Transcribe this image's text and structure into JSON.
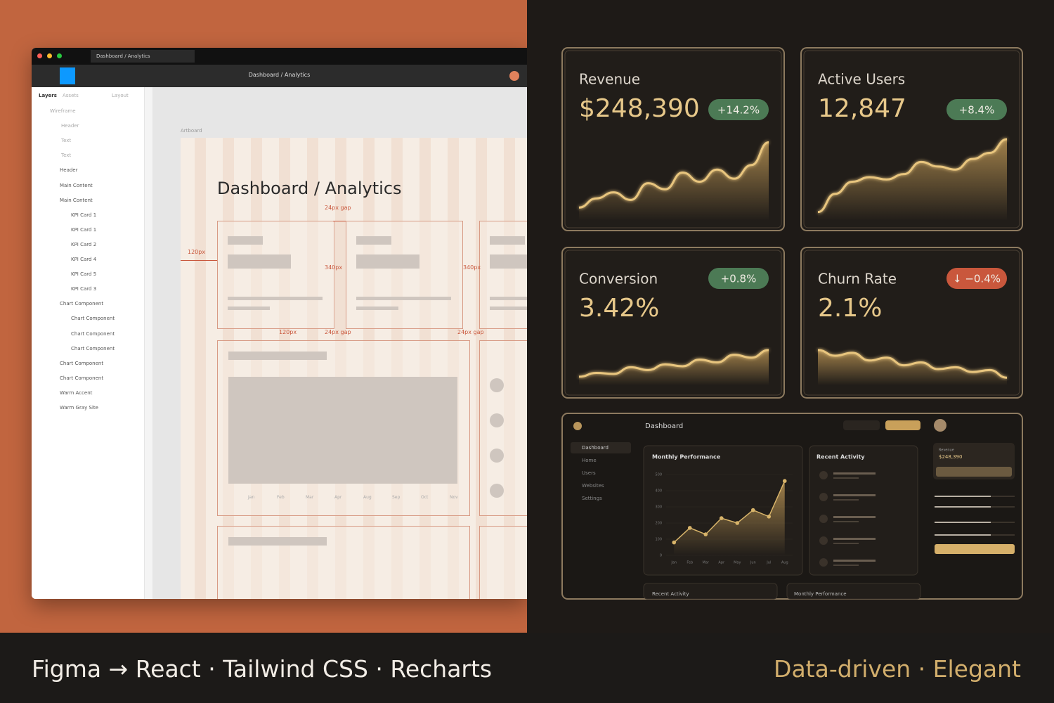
{
  "figma": {
    "tab": "Dashboard / Analytics",
    "toolbar_title": "Dashboard / Analytics",
    "panel_tabs": [
      "Layers",
      "Assets",
      "Layout"
    ],
    "layers": [
      "Wireframe",
      "Header",
      "Text",
      "Text",
      "Header",
      "Main Content",
      "Main Content",
      "KPI Card 1",
      "KPI Card 1",
      "KPI Card 2",
      "KPI Card 4",
      "KPI Card 5",
      "KPI Card 3",
      "Chart Component",
      "Chart Component",
      "Chart Component",
      "Chart Component",
      "Chart Component",
      "Chart Component",
      "Warm Accent",
      "Warm Gray Site"
    ],
    "artboard_label": "Artboard",
    "frame_title": "Dashboard / Analytics",
    "annotations": [
      "24px gap",
      "120px",
      "340px",
      "340px",
      "120px",
      "24px gap",
      "24px gap"
    ],
    "months": [
      "Jan",
      "Feb",
      "Mar",
      "Apr",
      "Aug",
      "Sep",
      "Oct",
      "Nov"
    ]
  },
  "kpis": [
    {
      "label": "Revenue",
      "value": "$248,390",
      "change": "+14.2%",
      "trend": "up",
      "spark": [
        10,
        22,
        30,
        20,
        42,
        34,
        56,
        44,
        60,
        48,
        66,
        96
      ]
    },
    {
      "label": "Active Users",
      "value": "12,847",
      "change": "+8.4%",
      "trend": "up",
      "spark": [
        4,
        28,
        44,
        50,
        47,
        54,
        70,
        64,
        60,
        74,
        82,
        100
      ]
    },
    {
      "label": "Conversion",
      "value": "3.42%",
      "change": "+0.8%",
      "trend": "up",
      "spark": [
        6,
        14,
        12,
        26,
        20,
        32,
        28,
        42,
        36,
        52,
        46,
        62
      ]
    },
    {
      "label": "Churn Rate",
      "value": "2.1%",
      "change": "↓ −0.4%",
      "trend": "down",
      "spark": [
        62,
        50,
        56,
        40,
        46,
        30,
        36,
        22,
        26,
        16,
        20,
        4
      ]
    }
  ],
  "mini_dashboard": {
    "title": "Dashboard",
    "nav": [
      "Dashboard",
      "Home",
      "Users",
      "Websites",
      "Settings"
    ],
    "chart": {
      "type": "line",
      "title": "Monthly Performance",
      "categories": [
        "Jan",
        "Feb",
        "Mar",
        "Apr",
        "May",
        "Jun",
        "Jul",
        "Aug"
      ],
      "values": [
        80,
        170,
        130,
        230,
        200,
        280,
        240,
        460
      ],
      "color": "#d8b46a",
      "ylim": [
        0,
        500
      ],
      "yticks": [
        0,
        100,
        200,
        300,
        400,
        500
      ]
    },
    "activity_title": "Recent Activity",
    "side_label": "Revenue",
    "side_value": "$248,390",
    "bottom": [
      "Recent Activity",
      "Monthly Performance"
    ]
  },
  "footer": {
    "left": "Figma → React · Tailwind CSS · Recharts",
    "right": "Data-driven · Elegant"
  }
}
